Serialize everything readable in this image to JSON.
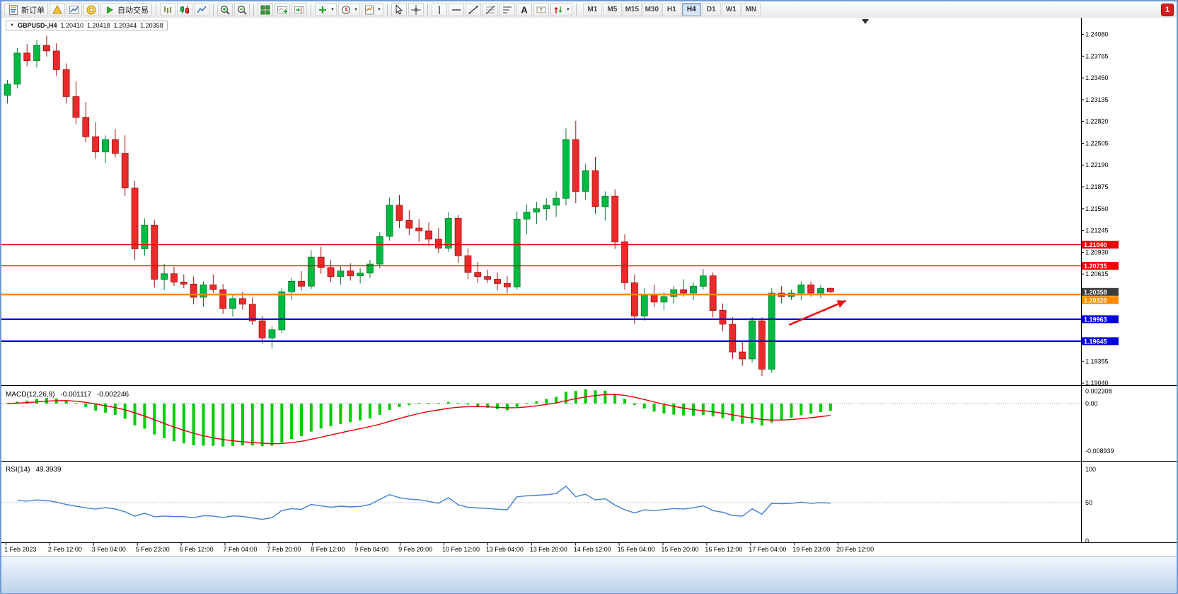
{
  "toolbar": {
    "new_order_label": "新订单",
    "auto_trading_label": "自动交易",
    "timeframes": [
      "M1",
      "M5",
      "M15",
      "M30",
      "H1",
      "H4",
      "D1",
      "W1",
      "MN"
    ],
    "active_timeframe": "H4",
    "notification_count": "1",
    "icons": [
      "new-order",
      "metaeditor",
      "market-watch",
      "community",
      "auto-trading",
      "bar-chart",
      "candlestick-chart",
      "line-chart",
      "zoom-in",
      "zoom-out",
      "tile-windows",
      "auto-scroll",
      "chart-shift",
      "indicators",
      "periods",
      "templates",
      "cursor",
      "crosshair",
      "vertical-line",
      "horizontal-line",
      "trendline",
      "fibonacci",
      "cycle-lines",
      "text",
      "text-label",
      "arrows"
    ]
  },
  "chart": {
    "symbol_label": "GBPUSD-,H4",
    "open": "1.20410",
    "high": "1.20418",
    "low": "1.20344",
    "close": "1.20358",
    "current_price_badge": "1.20358",
    "price_scale_labels": [
      "1.24080",
      "1.23765",
      "1.23450",
      "1.23135",
      "1.22820",
      "1.22505",
      "1.22190",
      "1.21875",
      "1.21560",
      "1.21245",
      "1.20930",
      "1.20615",
      "1.19355",
      "1.19040"
    ],
    "time_labels": [
      "1 Feb 2023",
      "2 Feb 12:00",
      "3 Feb 04:00",
      "5 Feb 23:00",
      "6 Feb 12:00",
      "7 Feb 04:00",
      "7 Feb 20:00",
      "8 Feb 12:00",
      "9 Feb 04:00",
      "9 Feb 20:00",
      "10 Feb 12:00",
      "13 Feb 04:00",
      "13 Feb 20:00",
      "14 Feb 12:00",
      "15 Feb 04:00",
      "15 Feb 20:00",
      "16 Feb 12:00",
      "17 Feb 04:00",
      "19 Feb 23:00",
      "20 Feb 12:00"
    ],
    "hlines": [
      {
        "price": 1.2104,
        "label": "1.21040",
        "color": "#EE0000",
        "width": 1.4
      },
      {
        "price": 1.20735,
        "label": "1.20735",
        "color": "#EE0000",
        "width": 1.4
      },
      {
        "price": 1.2032,
        "label": "1.20320",
        "color": "#FF8800",
        "width": 2.6
      },
      {
        "price": 1.19963,
        "label": "1.19963",
        "color": "#0000D8",
        "width": 2.2
      },
      {
        "price": 1.19645,
        "label": "1.19645",
        "color": "#0000D8",
        "width": 2.2
      }
    ],
    "arrow_annotation": {
      "from_candle": 79.8,
      "from_price": 1.1988,
      "to_candle": 85.6,
      "to_price": 1.2023,
      "color": "#EE1111"
    }
  },
  "indicators": {
    "macd": {
      "label": "MACD(12,26,9)",
      "value1": "-0.001117",
      "value2": "-0.002246",
      "scale_labels": [
        "0.002308",
        "0.00",
        "-0.008939"
      ],
      "histogram_color": "#00CC00",
      "signal_color": "#E00000"
    },
    "rsi": {
      "label": "RSI(14)",
      "value": "49.3939",
      "scale_labels": [
        "100",
        "50",
        "0"
      ],
      "line_color": "#3E7FD6"
    }
  },
  "chart_data": {
    "type": "candlestick",
    "symbol": "GBPUSD",
    "timeframe": "H4",
    "price_range": [
      1.1901,
      1.243
    ],
    "candles": [
      [
        1.232,
        1.2342,
        1.2308,
        1.2336
      ],
      [
        1.2336,
        1.2388,
        1.233,
        1.2381
      ],
      [
        1.2381,
        1.2394,
        1.2362,
        1.237
      ],
      [
        1.237,
        1.24,
        1.236,
        1.2392
      ],
      [
        1.2392,
        1.2406,
        1.2376,
        1.2384
      ],
      [
        1.2384,
        1.2395,
        1.2348,
        1.2357
      ],
      [
        1.2357,
        1.2366,
        1.2308,
        1.2318
      ],
      [
        1.2318,
        1.234,
        1.2278,
        1.2288
      ],
      [
        1.2288,
        1.231,
        1.2252,
        1.226
      ],
      [
        1.226,
        1.2281,
        1.2228,
        1.2238
      ],
      [
        1.2238,
        1.2262,
        1.2222,
        1.2256
      ],
      [
        1.2256,
        1.2271,
        1.223,
        1.2236
      ],
      [
        1.2236,
        1.2262,
        1.2174,
        1.2186
      ],
      [
        1.2186,
        1.2196,
        1.2082,
        1.2098
      ],
      [
        1.2098,
        1.2142,
        1.2088,
        1.2132
      ],
      [
        1.2132,
        1.214,
        1.2042,
        1.2054
      ],
      [
        1.2054,
        1.2076,
        1.2038,
        1.2062
      ],
      [
        1.2062,
        1.2072,
        1.2044,
        1.205
      ],
      [
        1.205,
        1.2061,
        1.2041,
        1.2047
      ],
      [
        1.2047,
        1.2058,
        1.2018,
        1.2028
      ],
      [
        1.2028,
        1.2051,
        1.2014,
        1.2046
      ],
      [
        1.2046,
        1.2061,
        1.2034,
        1.2039
      ],
      [
        1.2039,
        1.2047,
        1.2004,
        1.2012
      ],
      [
        1.2012,
        1.2031,
        1.2,
        1.2026
      ],
      [
        1.2026,
        1.2036,
        1.201,
        1.2018
      ],
      [
        1.2018,
        1.2028,
        1.1988,
        1.1994
      ],
      [
        1.1994,
        1.2001,
        1.1961,
        1.1969
      ],
      [
        1.1969,
        1.1986,
        1.1954,
        1.1981
      ],
      [
        1.1981,
        1.2041,
        1.1976,
        1.2036
      ],
      [
        1.2036,
        1.2056,
        1.2024,
        1.2051
      ],
      [
        1.2051,
        1.2066,
        1.2038,
        1.2044
      ],
      [
        1.2044,
        1.2096,
        1.204,
        1.2086
      ],
      [
        1.2086,
        1.2101,
        1.2062,
        1.2071
      ],
      [
        1.2071,
        1.2082,
        1.205,
        1.2058
      ],
      [
        1.2058,
        1.2074,
        1.2046,
        1.2066
      ],
      [
        1.2066,
        1.2077,
        1.2052,
        1.2059
      ],
      [
        1.2059,
        1.207,
        1.2048,
        1.2063
      ],
      [
        1.2063,
        1.2082,
        1.2056,
        1.2076
      ],
      [
        1.2076,
        1.2122,
        1.207,
        1.2116
      ],
      [
        1.2116,
        1.2172,
        1.211,
        1.2161
      ],
      [
        1.2161,
        1.2176,
        1.2128,
        1.2139
      ],
      [
        1.2139,
        1.2154,
        1.2118,
        1.2128
      ],
      [
        1.2128,
        1.2141,
        1.2108,
        1.2124
      ],
      [
        1.2124,
        1.2136,
        1.2102,
        1.2112
      ],
      [
        1.2112,
        1.2128,
        1.2092,
        1.2099
      ],
      [
        1.2099,
        1.2151,
        1.2094,
        1.2142
      ],
      [
        1.2142,
        1.2147,
        1.2078,
        1.2088
      ],
      [
        1.2088,
        1.2099,
        1.2054,
        1.2064
      ],
      [
        1.2064,
        1.2079,
        1.2049,
        1.2058
      ],
      [
        1.2058,
        1.2068,
        1.2049,
        1.2054
      ],
      [
        1.2054,
        1.2064,
        1.2038,
        1.2048
      ],
      [
        1.2048,
        1.2059,
        1.2034,
        1.2043
      ],
      [
        1.2043,
        1.2152,
        1.2039,
        1.2141
      ],
      [
        1.2141,
        1.2162,
        1.2119,
        1.2151
      ],
      [
        1.2151,
        1.2166,
        1.2134,
        1.2156
      ],
      [
        1.2156,
        1.2171,
        1.2139,
        1.2161
      ],
      [
        1.2161,
        1.2181,
        1.2144,
        1.2171
      ],
      [
        1.2171,
        1.2272,
        1.2161,
        1.2256
      ],
      [
        1.2256,
        1.2283,
        1.2164,
        1.2181
      ],
      [
        1.2181,
        1.2221,
        1.2169,
        1.2211
      ],
      [
        1.2211,
        1.2231,
        1.2149,
        1.2159
      ],
      [
        1.2159,
        1.2181,
        1.2139,
        1.2174
      ],
      [
        1.2174,
        1.2184,
        1.2098,
        1.2108
      ],
      [
        1.2108,
        1.2119,
        1.2039,
        1.2049
      ],
      [
        1.2049,
        1.2061,
        1.1989,
        1.2001
      ],
      [
        1.2001,
        1.2041,
        1.1994,
        1.2031
      ],
      [
        1.2031,
        1.2046,
        1.2014,
        1.2021
      ],
      [
        1.2021,
        1.2036,
        1.2009,
        1.2029
      ],
      [
        1.2029,
        1.2044,
        1.2019,
        1.2039
      ],
      [
        1.2039,
        1.2054,
        1.2029,
        1.2034
      ],
      [
        1.2034,
        1.2049,
        1.2024,
        1.2044
      ],
      [
        1.2044,
        1.2069,
        1.2039,
        1.2059
      ],
      [
        1.2059,
        1.2064,
        1.1999,
        1.2009
      ],
      [
        1.2009,
        1.2019,
        1.1979,
        1.1989
      ],
      [
        1.1989,
        1.1999,
        1.1939,
        1.1949
      ],
      [
        1.1949,
        1.1964,
        1.1929,
        1.1939
      ],
      [
        1.1939,
        1.1999,
        1.1934,
        1.1994
      ],
      [
        1.1994,
        1.1999,
        1.1914,
        1.1924
      ],
      [
        1.1924,
        1.2041,
        1.1919,
        1.2034
      ],
      [
        1.2034,
        1.2044,
        1.2019,
        1.2029
      ],
      [
        1.2029,
        1.2039,
        1.2024,
        1.2034
      ],
      [
        1.2034,
        1.2051,
        1.2024,
        1.2046
      ],
      [
        1.2046,
        1.2051,
        1.2029,
        1.2034
      ],
      [
        1.2034,
        1.2046,
        1.2027,
        1.2041
      ],
      [
        1.2041,
        1.2042,
        1.2034,
        1.2036
      ]
    ]
  }
}
